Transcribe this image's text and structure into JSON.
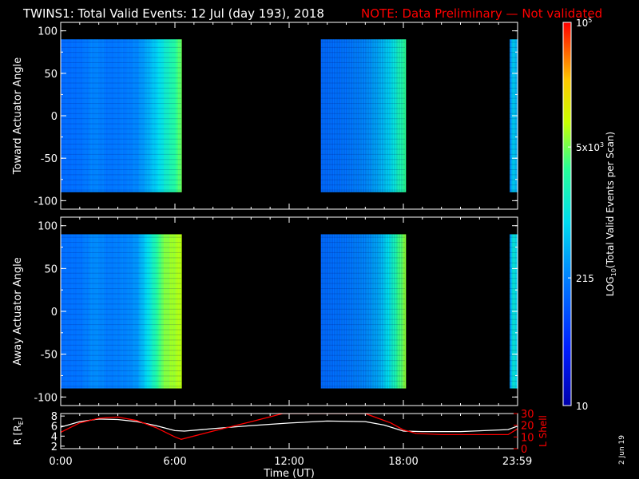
{
  "header": {
    "title": "TWINS1: Total Valid Events: 12 Jul (day 193), 2018",
    "note": "NOTE: Data Preliminary — Not validated"
  },
  "footer": {
    "date_stamp": "2 Jun 19"
  },
  "colors": {
    "note": "#ff0000",
    "axes": "#ffffff",
    "r_line": "#ffffff",
    "lshell_line": "#ff0000"
  },
  "colorbar": {
    "label_prefix": "LOG",
    "label_sub": "10",
    "label_suffix": "(Total Valid Events per Scan)",
    "scale": "log",
    "range": [
      10,
      100000
    ],
    "ticks": [
      {
        "value": 10,
        "label": "10"
      },
      {
        "value": 215,
        "label": "215"
      },
      {
        "value": 5000,
        "base": "5x10",
        "exp": "3"
      },
      {
        "value": 100000,
        "base": "10",
        "exp": "5"
      }
    ]
  },
  "chart_data": [
    {
      "type": "heatmap",
      "ylabel": "Toward Actuator Angle",
      "xlim": [
        "00:00",
        "24:00"
      ],
      "ylim": [
        -110,
        110
      ],
      "yticks": [
        100,
        50,
        0,
        -50,
        -100
      ],
      "angle_range": [
        -90,
        90
      ],
      "data_blocks": [
        {
          "start": "00:00",
          "end": "06:20",
          "profile": [
            [
              "00:00",
              150
            ],
            [
              "01:00",
              170
            ],
            [
              "01:45",
              230
            ],
            [
              "02:30",
              180
            ],
            [
              "03:30",
              200
            ],
            [
              "04:00",
              240
            ],
            [
              "04:30",
              380
            ],
            [
              "05:00",
              700
            ],
            [
              "05:20",
              1100
            ],
            [
              "05:40",
              1800
            ],
            [
              "06:00",
              2800
            ],
            [
              "06:15",
              4500
            ],
            [
              "06:20",
              5000
            ]
          ]
        },
        {
          "start": "13:40",
          "end": "18:05",
          "profile": [
            [
              "13:40",
              150
            ],
            [
              "15:00",
              180
            ],
            [
              "16:00",
              240
            ],
            [
              "16:45",
              420
            ],
            [
              "17:20",
              800
            ],
            [
              "17:45",
              1800
            ],
            [
              "18:05",
              3000
            ]
          ]
        },
        {
          "start": "23:35",
          "end": "24:00",
          "profile": [
            [
              "23:35",
              250
            ],
            [
              "23:45",
              800
            ],
            [
              "24:00",
              300
            ]
          ]
        }
      ]
    },
    {
      "type": "heatmap",
      "ylabel": "Away Actuator Angle",
      "xlim": [
        "00:00",
        "24:00"
      ],
      "ylim": [
        -110,
        110
      ],
      "yticks": [
        100,
        50,
        0,
        -50,
        -100
      ],
      "angle_range": [
        -90,
        90
      ],
      "data_blocks": [
        {
          "start": "00:00",
          "end": "06:20",
          "profile": [
            [
              "00:00",
              160
            ],
            [
              "01:00",
              180
            ],
            [
              "01:45",
              260
            ],
            [
              "02:30",
              200
            ],
            [
              "03:30",
              230
            ],
            [
              "04:00",
              300
            ],
            [
              "04:30",
              800
            ],
            [
              "05:00",
              2500
            ],
            [
              "05:20",
              5000
            ],
            [
              "05:45",
              6500
            ],
            [
              "06:10",
              7500
            ],
            [
              "06:20",
              9000
            ]
          ]
        },
        {
          "start": "13:40",
          "end": "18:05",
          "profile": [
            [
              "13:40",
              150
            ],
            [
              "15:00",
              180
            ],
            [
              "16:00",
              240
            ],
            [
              "16:45",
              420
            ],
            [
              "17:20",
              1200
            ],
            [
              "17:45",
              3500
            ],
            [
              "18:05",
              6000
            ]
          ]
        },
        {
          "start": "23:35",
          "end": "24:00",
          "profile": [
            [
              "23:35",
              300
            ],
            [
              "23:45",
              1500
            ],
            [
              "24:00",
              500
            ]
          ]
        }
      ]
    },
    {
      "type": "line",
      "xlabel": "Time (UT)",
      "xlim": [
        "00:00",
        "24:00"
      ],
      "xticks": [
        "0:00",
        "6:00",
        "12:00",
        "18:00",
        "23:59"
      ],
      "ylabel_left": "R [R",
      "ylabel_left_sub": "E",
      "ylabel_left_end": "]",
      "ylim_left": [
        1.5,
        8.5
      ],
      "yticks_left": [
        2,
        4,
        6,
        8
      ],
      "ylabel_right": "L Shell",
      "ylim_right": [
        0,
        30
      ],
      "yticks_right": [
        0,
        10,
        20,
        30
      ],
      "series": [
        {
          "axis": "left",
          "x": [
            "00:00",
            "01:00",
            "02:00",
            "03:00",
            "04:00",
            "05:00",
            "06:00",
            "06:30",
            "08:00",
            "10:00",
            "12:00",
            "14:00",
            "16:00",
            "17:00",
            "18:00",
            "19:00",
            "21:00",
            "23:30",
            "24:00"
          ],
          "y": [
            5.8,
            6.9,
            7.4,
            7.3,
            6.9,
            6.1,
            5.1,
            5.0,
            5.5,
            6.1,
            6.6,
            7.0,
            6.9,
            6.2,
            5.0,
            4.9,
            4.9,
            5.3,
            6.0
          ]
        },
        {
          "axis": "right",
          "x": [
            "00:00",
            "01:00",
            "02:00",
            "03:00",
            "04:00",
            "05:00",
            "06:00",
            "06:20",
            "08:00",
            "10:00",
            "11:40",
            "16:00",
            "16:40",
            "17:20",
            "18:00",
            "18:40",
            "20:00",
            "22:00",
            "23:30",
            "24:00"
          ],
          "y": [
            14,
            22,
            26,
            27,
            24,
            18,
            10,
            8,
            15,
            23,
            30,
            30,
            26,
            22,
            16,
            13,
            12,
            12,
            12,
            17
          ]
        }
      ]
    }
  ]
}
